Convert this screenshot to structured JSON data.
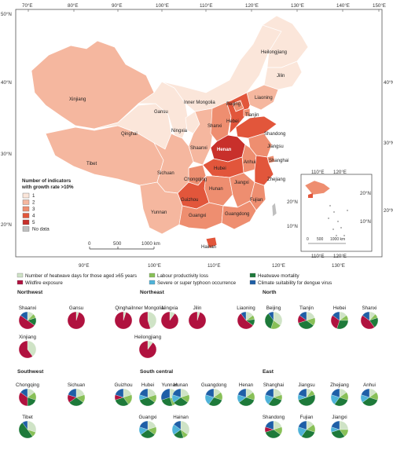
{
  "colors": {
    "c1": "#fbe6da",
    "c2": "#f5b79f",
    "c3": "#ee8e70",
    "c4": "#e2563b",
    "c5": "#c8302b",
    "nodata": "#bfbfbf",
    "heatwave_days": "#cfe3c6",
    "labour": "#88c057",
    "heatwave_mortality": "#1e7a3a",
    "wildfire": "#b0123f",
    "typhoon": "#4fb3d9",
    "dengue": "#1f5fa7"
  },
  "lon_ticks": [
    "70°E",
    "80°E",
    "90°E",
    "100°E",
    "110°E",
    "120°E",
    "130°E",
    "140°E",
    "150°E"
  ],
  "lat_ticks_left": [
    "50°N",
    "40°N",
    "30°N",
    "20°N"
  ],
  "lat_ticks_right": [
    "40°N",
    "30°N",
    "20°N"
  ],
  "bottom_ticks": [
    "90°E",
    "100°E",
    "110°E",
    "120°E",
    "130°E"
  ],
  "map_legend": {
    "title_line1": "Number of indicators",
    "title_line2": "with growth rate >10%",
    "items": [
      "1",
      "2",
      "3",
      "4",
      "5",
      "No data"
    ]
  },
  "scale_bar": [
    "0",
    "500",
    "1000 km"
  ],
  "inset": {
    "top_ticks": [
      "110°E",
      "120°E"
    ],
    "bottom_ticks": [
      "110°E",
      "120°E"
    ],
    "left_ticks": [
      "20°N",
      "10°N"
    ],
    "right_ticks": [
      "20°N",
      "10°N"
    ],
    "scale": [
      "0",
      "500",
      "1000 km"
    ]
  },
  "provinces": [
    {
      "name": "Heilongjiang",
      "level": 1
    },
    {
      "name": "Jilin",
      "level": 1
    },
    {
      "name": "Liaoning",
      "level": 2
    },
    {
      "name": "Inner Mongolia",
      "level": 1
    },
    {
      "name": "Xinjiang",
      "level": 2
    },
    {
      "name": "Gansu",
      "level": 1
    },
    {
      "name": "Ningxia",
      "level": 1
    },
    {
      "name": "Qinghai",
      "level": 1
    },
    {
      "name": "Tibet",
      "level": 2
    },
    {
      "name": "Beijing",
      "level": 3
    },
    {
      "name": "Tianjin",
      "level": 3
    },
    {
      "name": "Hebei",
      "level": 4
    },
    {
      "name": "Shanxi",
      "level": 3
    },
    {
      "name": "Shaanxi",
      "level": 2
    },
    {
      "name": "Shandong",
      "level": 4
    },
    {
      "name": "Henan",
      "level": 5
    },
    {
      "name": "Jiangsu",
      "level": 3
    },
    {
      "name": "Anhui",
      "level": 3
    },
    {
      "name": "Shanghai",
      "level": 3
    },
    {
      "name": "Hubei",
      "level": 4
    },
    {
      "name": "Sichuan",
      "level": 2
    },
    {
      "name": "Chongqing",
      "level": 3
    },
    {
      "name": "Zhejiang",
      "level": 4
    },
    {
      "name": "Hunan",
      "level": 3
    },
    {
      "name": "Jiangxi",
      "level": 3
    },
    {
      "name": "Guizhou",
      "level": 4
    },
    {
      "name": "Fujian",
      "level": 3
    },
    {
      "name": "Yunnan",
      "level": 2
    },
    {
      "name": "Guangxi",
      "level": 3
    },
    {
      "name": "Guangdong",
      "level": 3
    },
    {
      "name": "Hainan",
      "level": 4
    }
  ],
  "pie_legend": [
    {
      "label": "Number of heatwave days for those aged ≥65 years",
      "key": "heatwave_days"
    },
    {
      "label": "Labour productivity loss",
      "key": "labour"
    },
    {
      "label": "Heatwave mortality",
      "key": "heatwave_mortality"
    },
    {
      "label": "Wildfire exposure",
      "key": "wildfire"
    },
    {
      "label": "Severe or super typhoon occurrence",
      "key": "typhoon"
    },
    {
      "label": "Climate suitability for dengue virus",
      "key": "dengue"
    }
  ],
  "regions": [
    {
      "title": "Northwest",
      "pies": [
        {
          "name": "Shaanxi",
          "shares": {
            "heatwave_days": 0.12,
            "labour": 0.08,
            "heatwave_mortality": 0.15,
            "wildfire": 0.5,
            "dengue": 0.15
          }
        },
        {
          "name": "Gansu",
          "shares": {
            "wildfire": 0.95,
            "heatwave_days": 0.05
          }
        },
        {
          "name": "Qinghai",
          "shares": {
            "wildfire": 0.95,
            "heatwave_days": 0.05
          }
        },
        {
          "name": "Ningxia",
          "shares": {
            "wildfire": 0.9,
            "heatwave_days": 0.1
          }
        },
        {
          "name": "Xinjiang",
          "shares": {
            "heatwave_days": 0.4,
            "wildfire": 0.6
          }
        }
      ]
    },
    {
      "title": "Northeast",
      "pies": [
        {
          "name": "Inner Mongolia",
          "shares": {
            "heatwave_days": 0.45,
            "wildfire": 0.55
          }
        },
        {
          "name": "Jilin",
          "shares": {
            "wildfire": 0.95,
            "heatwave_days": 0.05
          }
        },
        {
          "name": "Liaoning",
          "shares": {
            "heatwave_days": 0.15,
            "labour": 0.08,
            "heatwave_mortality": 0.12,
            "wildfire": 0.55,
            "dengue": 0.1
          }
        },
        {
          "name": "Heilongjiang",
          "shares": {
            "wildfire": 0.9,
            "heatwave_days": 0.1
          }
        }
      ]
    },
    {
      "title": "North",
      "pies": [
        {
          "name": "Beijing",
          "shares": {
            "heatwave_days": 0.35,
            "labour": 0.2,
            "heatwave_mortality": 0.35,
            "dengue": 0.1
          }
        },
        {
          "name": "Tianjin",
          "shares": {
            "heatwave_days": 0.2,
            "labour": 0.15,
            "heatwave_mortality": 0.35,
            "wildfire": 0.15,
            "dengue": 0.15
          }
        },
        {
          "name": "Hebei",
          "shares": {
            "heatwave_days": 0.15,
            "labour": 0.1,
            "heatwave_mortality": 0.3,
            "wildfire": 0.3,
            "dengue": 0.15
          }
        },
        {
          "name": "Shanxi",
          "shares": {
            "heatwave_days": 0.12,
            "labour": 0.08,
            "heatwave_mortality": 0.2,
            "wildfire": 0.45,
            "dengue": 0.15
          }
        }
      ]
    },
    {
      "title": "Southwest",
      "pies": [
        {
          "name": "Chongqing",
          "shares": {
            "heatwave_days": 0.15,
            "labour": 0.15,
            "heatwave_mortality": 0.2,
            "wildfire": 0.35,
            "dengue": 0.15
          }
        },
        {
          "name": "Sichuan",
          "shares": {
            "heatwave_days": 0.2,
            "labour": 0.15,
            "heatwave_mortality": 0.3,
            "wildfire": 0.15,
            "dengue": 0.2
          }
        },
        {
          "name": "Guizhou",
          "shares": {
            "heatwave_days": 0.2,
            "labour": 0.2,
            "heatwave_mortality": 0.3,
            "wildfire": 0.1,
            "dengue": 0.2
          }
        },
        {
          "name": "Yunnan",
          "shares": {
            "heatwave_days": 0.3,
            "labour": 0.15,
            "heatwave_mortality": 0.25,
            "dengue": 0.3
          }
        },
        {
          "name": "Tibet",
          "shares": {
            "heatwave_days": 0.3,
            "labour": 0.1,
            "heatwave_mortality": 0.5,
            "dengue": 0.1
          }
        }
      ]
    },
    {
      "title": "South central",
      "pies": [
        {
          "name": "Hubei",
          "shares": {
            "heatwave_days": 0.2,
            "labour": 0.15,
            "heatwave_mortality": 0.35,
            "typhoon": 0.1,
            "dengue": 0.2
          }
        },
        {
          "name": "Hunan",
          "shares": {
            "heatwave_days": 0.2,
            "labour": 0.15,
            "heatwave_mortality": 0.3,
            "typhoon": 0.15,
            "dengue": 0.2
          }
        },
        {
          "name": "Guangdong",
          "shares": {
            "heatwave_days": 0.15,
            "labour": 0.15,
            "heatwave_mortality": 0.3,
            "typhoon": 0.2,
            "dengue": 0.2
          }
        },
        {
          "name": "Henan",
          "shares": {
            "heatwave_days": 0.15,
            "labour": 0.15,
            "heatwave_mortality": 0.35,
            "typhoon": 0.15,
            "dengue": 0.2
          }
        },
        {
          "name": "Guangxi",
          "shares": {
            "heatwave_days": 0.2,
            "labour": 0.15,
            "heatwave_mortality": 0.3,
            "typhoon": 0.15,
            "dengue": 0.2
          }
        },
        {
          "name": "Hainan",
          "shares": {
            "heatwave_days": 0.35,
            "labour": 0.1,
            "heatwave_mortality": 0.2,
            "typhoon": 0.2,
            "dengue": 0.15
          }
        }
      ]
    },
    {
      "title": "East",
      "pies": [
        {
          "name": "Shanghai",
          "shares": {
            "heatwave_days": 0.2,
            "labour": 0.1,
            "heatwave_mortality": 0.3,
            "typhoon": 0.2,
            "dengue": 0.2
          }
        },
        {
          "name": "Jiangsu",
          "shares": {
            "heatwave_days": 0.1,
            "labour": 0.1,
            "heatwave_mortality": 0.5,
            "typhoon": 0.1,
            "dengue": 0.2
          }
        },
        {
          "name": "Zhejiang",
          "shares": {
            "heatwave_days": 0.15,
            "labour": 0.15,
            "heatwave_mortality": 0.3,
            "typhoon": 0.2,
            "dengue": 0.2
          }
        },
        {
          "name": "Anhui",
          "shares": {
            "heatwave_days": 0.15,
            "labour": 0.15,
            "heatwave_mortality": 0.35,
            "typhoon": 0.15,
            "dengue": 0.2
          }
        },
        {
          "name": "Shandong",
          "shares": {
            "heatwave_days": 0.2,
            "labour": 0.15,
            "heatwave_mortality": 0.35,
            "wildfire": 0.1,
            "dengue": 0.2
          }
        },
        {
          "name": "Fujian",
          "shares": {
            "heatwave_days": 0.15,
            "labour": 0.15,
            "heatwave_mortality": 0.3,
            "typhoon": 0.2,
            "dengue": 0.2
          }
        },
        {
          "name": "Jiangxi",
          "shares": {
            "heatwave_days": 0.25,
            "labour": 0.15,
            "heatwave_mortality": 0.3,
            "typhoon": 0.1,
            "dengue": 0.2
          }
        }
      ]
    }
  ]
}
